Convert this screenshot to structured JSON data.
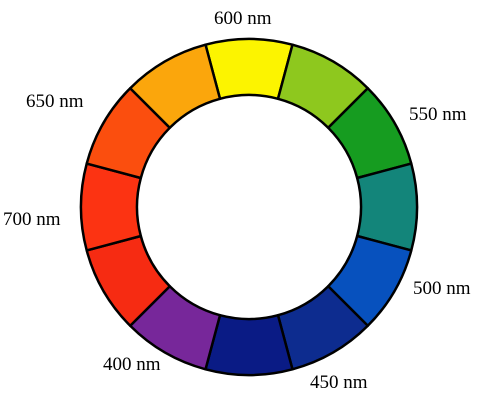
{
  "wheel": {
    "segments": [
      {
        "name": "yellow",
        "color": "#fcf400"
      },
      {
        "name": "yellow-green",
        "color": "#8ec81e"
      },
      {
        "name": "green",
        "color": "#169c20"
      },
      {
        "name": "teal",
        "color": "#13857a"
      },
      {
        "name": "blue",
        "color": "#0751be"
      },
      {
        "name": "dark-blue",
        "color": "#0d2c8f"
      },
      {
        "name": "navy",
        "color": "#0a1b85"
      },
      {
        "name": "purple",
        "color": "#77279a"
      },
      {
        "name": "red",
        "color": "#f62b12"
      },
      {
        "name": "red-orange",
        "color": "#fc3312"
      },
      {
        "name": "orange-red",
        "color": "#fb4e0e"
      },
      {
        "name": "orange",
        "color": "#fba60c"
      }
    ],
    "outline_color": "#000000"
  },
  "labels": {
    "nm600": "600 nm",
    "nm550": "550 nm",
    "nm650": "650 nm",
    "nm700": "700 nm",
    "nm500": "500 nm",
    "nm400": "400 nm",
    "nm450": "450 nm"
  }
}
